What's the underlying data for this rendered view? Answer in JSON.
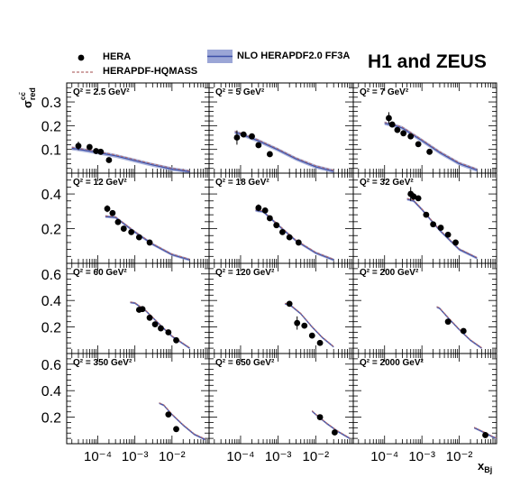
{
  "figure": {
    "title": "H1 and ZEUS",
    "ylabel": "σ_red^cc̄",
    "xlabel": "x_Bj",
    "legend": {
      "data": "HERA",
      "hqmass": "HERAPDF-HQMASS",
      "nlo": "NLO HERAPDF2.0 FF3A"
    },
    "colors": {
      "data": "#000000",
      "band": "#9ba6d6",
      "line": "#3c4fa8",
      "hqmass": "#b56f6f"
    }
  },
  "chart_data": [
    {
      "type": "scatter",
      "q2": "2.5",
      "panel_label": "Q² = 2.5 GeV²",
      "ylim": [
        0,
        0.38
      ],
      "yticks": [
        0.1,
        0.2,
        0.3
      ],
      "xlim": [
        1.45e-05,
        0.1
      ],
      "x": [
        3e-05,
        6e-05,
        9e-05,
        0.00012,
        0.0002
      ],
      "y": [
        0.115,
        0.11,
        0.093,
        0.09,
        0.055
      ],
      "err": [
        0.018,
        0.008,
        0.008,
        0.008,
        0.006
      ],
      "theory": {
        "x": [
          2e-05,
          5e-05,
          0.0001,
          0.0003,
          0.001,
          0.003,
          0.01,
          0.03
        ],
        "y": [
          0.105,
          0.095,
          0.087,
          0.073,
          0.053,
          0.035,
          0.017,
          0.006
        ]
      }
    },
    {
      "type": "scatter",
      "q2": "5",
      "panel_label": "Q² = 5 GeV²",
      "ylim": [
        0,
        0.38
      ],
      "yticks": [
        0.1,
        0.2,
        0.3
      ],
      "xlim": [
        1.45e-05,
        0.1
      ],
      "x": [
        8e-05,
        0.00012,
        0.0002,
        0.0003,
        0.0006
      ],
      "y": [
        0.15,
        0.163,
        0.155,
        0.118,
        0.08
      ],
      "err": [
        0.03,
        0.012,
        0.01,
        0.008,
        0.006
      ],
      "theory": {
        "x": [
          7e-05,
          0.0001,
          0.0003,
          0.001,
          0.003,
          0.01,
          0.03
        ],
        "y": [
          0.172,
          0.165,
          0.136,
          0.098,
          0.06,
          0.027,
          0.008
        ]
      }
    },
    {
      "type": "scatter",
      "q2": "7",
      "panel_label": "Q² = 7 GeV²",
      "ylim": [
        0,
        0.38
      ],
      "yticks": [
        0.1,
        0.2,
        0.3
      ],
      "xlim": [
        1.45e-05,
        0.1
      ],
      "x": [
        0.00013,
        0.00016,
        0.00022,
        0.00032,
        0.0005,
        0.0008,
        0.0016
      ],
      "y": [
        0.232,
        0.205,
        0.182,
        0.168,
        0.155,
        0.122,
        0.09
      ],
      "err": [
        0.025,
        0.012,
        0.01,
        0.008,
        0.007,
        0.006,
        0.006
      ],
      "theory": {
        "x": [
          0.0001,
          0.0002,
          0.0003,
          0.001,
          0.003,
          0.01,
          0.03
        ],
        "y": [
          0.21,
          0.199,
          0.19,
          0.137,
          0.087,
          0.04,
          0.013
        ]
      }
    },
    {
      "type": "scatter",
      "q2": "12",
      "panel_label": "Q² = 12 GeV²",
      "ylim": [
        0,
        0.52
      ],
      "yticks": [
        0.2,
        0.4
      ],
      "xlim": [
        1.45e-05,
        0.1
      ],
      "x": [
        0.00018,
        0.00025,
        0.00035,
        0.0005,
        0.0008,
        0.0013,
        0.0025
      ],
      "y": [
        0.315,
        0.29,
        0.238,
        0.2,
        0.18,
        0.15,
        0.12
      ],
      "err": [
        0.02,
        0.015,
        0.012,
        0.01,
        0.008,
        0.008,
        0.008
      ],
      "theory": {
        "x": [
          0.00016,
          0.0003,
          0.001,
          0.003,
          0.01,
          0.03
        ],
        "y": [
          0.27,
          0.265,
          0.18,
          0.11,
          0.05,
          0.02
        ]
      }
    },
    {
      "type": "scatter",
      "q2": "18",
      "panel_label": "Q² = 18 GeV²",
      "ylim": [
        0,
        0.52
      ],
      "yticks": [
        0.2,
        0.4
      ],
      "xlim": [
        1.45e-05,
        0.1
      ],
      "x": [
        0.0003,
        0.00045,
        0.0006,
        0.0009,
        0.0013,
        0.002,
        0.0035
      ],
      "y": [
        0.32,
        0.305,
        0.26,
        0.22,
        0.18,
        0.15,
        0.12
      ],
      "err": [
        0.02,
        0.015,
        0.012,
        0.01,
        0.008,
        0.008,
        0.008
      ],
      "theory": {
        "x": [
          0.00025,
          0.0004,
          0.001,
          0.003,
          0.01,
          0.03
        ],
        "y": [
          0.305,
          0.298,
          0.22,
          0.13,
          0.06,
          0.02
        ]
      }
    },
    {
      "type": "scatter",
      "q2": "32",
      "panel_label": "Q² = 32 GeV²",
      "ylim": [
        0,
        0.52
      ],
      "yticks": [
        0.2,
        0.4
      ],
      "xlim": [
        1.45e-05,
        0.1
      ],
      "x": [
        0.0005,
        0.0006,
        0.0008,
        0.0013,
        0.002,
        0.0032,
        0.005,
        0.008
      ],
      "y": [
        0.4,
        0.385,
        0.375,
        0.28,
        0.225,
        0.205,
        0.165,
        0.12
      ],
      "err": [
        0.04,
        0.02,
        0.015,
        0.012,
        0.01,
        0.01,
        0.008,
        0.008
      ],
      "theory": {
        "x": [
          0.0004,
          0.0006,
          0.001,
          0.003,
          0.01,
          0.03
        ],
        "y": [
          0.37,
          0.36,
          0.31,
          0.19,
          0.08,
          0.03
        ]
      }
    },
    {
      "type": "scatter",
      "q2": "60",
      "panel_label": "Q² = 60 GeV²",
      "ylim": [
        0,
        0.68
      ],
      "yticks": [
        0.2,
        0.4,
        0.6
      ],
      "xlim": [
        1.45e-05,
        0.1
      ],
      "x": [
        0.0013,
        0.0016,
        0.0025,
        0.0035,
        0.005,
        0.008,
        0.013
      ],
      "y": [
        0.33,
        0.335,
        0.27,
        0.22,
        0.19,
        0.16,
        0.1
      ],
      "err": [
        0.02,
        0.015,
        0.012,
        0.01,
        0.01,
        0.008,
        0.008
      ],
      "theory": {
        "x": [
          0.00075,
          0.001,
          0.002,
          0.005,
          0.01,
          0.03
        ],
        "y": [
          0.385,
          0.38,
          0.32,
          0.21,
          0.13,
          0.04
        ]
      }
    },
    {
      "type": "scatter",
      "q2": "120",
      "panel_label": "Q² = 120 GeV²",
      "ylim": [
        0,
        0.68
      ],
      "yticks": [
        0.2,
        0.4,
        0.6
      ],
      "xlim": [
        1.45e-05,
        0.1
      ],
      "x": [
        0.002,
        0.0032,
        0.005,
        0.008,
        0.013
      ],
      "y": [
        0.375,
        0.23,
        0.21,
        0.135,
        0.08
      ],
      "err": [
        0.02,
        0.05,
        0.012,
        0.01,
        0.008
      ],
      "theory": {
        "x": [
          0.0015,
          0.002,
          0.004,
          0.008,
          0.015,
          0.03
        ],
        "y": [
          0.375,
          0.37,
          0.3,
          0.2,
          0.12,
          0.05
        ]
      }
    },
    {
      "type": "scatter",
      "q2": "200",
      "panel_label": "Q² = 200 GeV²",
      "ylim": [
        0,
        0.68
      ],
      "yticks": [
        0.2,
        0.4,
        0.6
      ],
      "xlim": [
        1.45e-05,
        0.1
      ],
      "x": [
        0.005,
        0.013
      ],
      "y": [
        0.24,
        0.17
      ],
      "err": [
        0.015,
        0.012
      ],
      "theory": {
        "x": [
          0.0025,
          0.003,
          0.005,
          0.01,
          0.02,
          0.04
        ],
        "y": [
          0.35,
          0.34,
          0.27,
          0.18,
          0.1,
          0.04
        ]
      }
    },
    {
      "type": "scatter",
      "q2": "350",
      "panel_label": "Q² = 350 GeV²",
      "ylim": [
        0,
        0.68
      ],
      "yticks": [
        0.2,
        0.4,
        0.6
      ],
      "xlim": [
        1.45e-05,
        0.1
      ],
      "x": [
        0.008,
        0.013
      ],
      "y": [
        0.22,
        0.11
      ],
      "err": [
        0.015,
        0.01
      ],
      "theory": {
        "x": [
          0.0045,
          0.006,
          0.01,
          0.02,
          0.04,
          0.08
        ],
        "y": [
          0.305,
          0.29,
          0.22,
          0.14,
          0.07,
          0.03
        ]
      }
    },
    {
      "type": "scatter",
      "q2": "650",
      "panel_label": "Q² = 650 GeV²",
      "ylim": [
        0,
        0.68
      ],
      "yticks": [
        0.2,
        0.4,
        0.6
      ],
      "xlim": [
        1.45e-05,
        0.1
      ],
      "x": [
        0.013,
        0.032
      ],
      "y": [
        0.2,
        0.085
      ],
      "err": [
        0.012,
        0.01
      ],
      "theory": {
        "x": [
          0.008,
          0.01,
          0.02,
          0.04,
          0.08
        ],
        "y": [
          0.245,
          0.22,
          0.15,
          0.09,
          0.04
        ]
      }
    },
    {
      "type": "scatter",
      "q2": "2000",
      "panel_label": "Q² = 2000 GeV²",
      "ylim": [
        0,
        0.68
      ],
      "yticks": [
        0.2,
        0.4,
        0.6
      ],
      "xlim": [
        1.45e-05,
        0.1
      ],
      "x": [
        0.05
      ],
      "y": [
        0.065
      ],
      "err": [
        0.01
      ],
      "theory": {
        "x": [
          0.025,
          0.03,
          0.05,
          0.08,
          0.1
        ],
        "y": [
          0.12,
          0.11,
          0.08,
          0.05,
          0.04
        ]
      }
    }
  ],
  "axes": {
    "x_ticks": [
      0.0001,
      0.001,
      0.01
    ],
    "x_tick_labels": [
      "10⁻⁴",
      "10⁻³",
      "10⁻²"
    ]
  }
}
